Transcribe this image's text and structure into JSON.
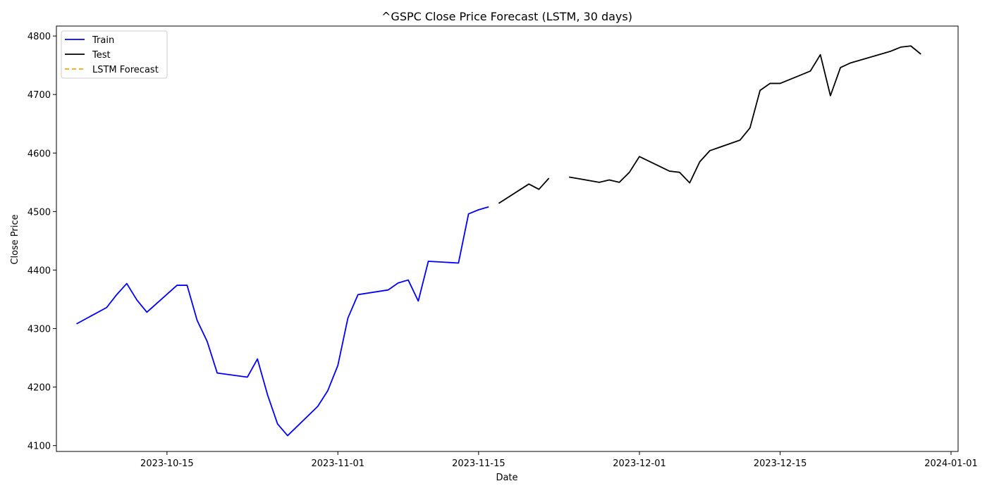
{
  "chart_data": {
    "type": "line",
    "title": "^GSPC Close Price Forecast (LSTM, 30 days)",
    "xlabel": "Date",
    "ylabel": "Close Price",
    "x_ticks": [
      "2023-10-15",
      "2023-11-01",
      "2023-11-15",
      "2023-12-01",
      "2023-12-15",
      "2024-01-01"
    ],
    "y_ticks": [
      4100,
      4200,
      4300,
      4400,
      4500,
      4600,
      4700,
      4800
    ],
    "xlim": [
      "2023-10-04",
      "2024-01-01"
    ],
    "ylim": [
      4090,
      4817
    ],
    "grid": false,
    "legend_position": "top-left",
    "series": [
      {
        "name": "Train",
        "color": "#0000ff",
        "style": "solid",
        "points": [
          [
            "2023-10-06",
            4308
          ],
          [
            "2023-10-09",
            4336
          ],
          [
            "2023-10-10",
            4358
          ],
          [
            "2023-10-11",
            4377
          ],
          [
            "2023-10-12",
            4349
          ],
          [
            "2023-10-13",
            4328
          ],
          [
            "2023-10-16",
            4374
          ],
          [
            "2023-10-17",
            4374
          ],
          [
            "2023-10-18",
            4314
          ],
          [
            "2023-10-19",
            4278
          ],
          [
            "2023-10-20",
            4224
          ],
          [
            "2023-10-23",
            4217
          ],
          [
            "2023-10-24",
            4248
          ],
          [
            "2023-10-25",
            4187
          ],
          [
            "2023-10-26",
            4137
          ],
          [
            "2023-10-27",
            4117
          ],
          [
            "2023-10-30",
            4167
          ],
          [
            "2023-10-31",
            4194
          ],
          [
            "2023-11-01",
            4237
          ],
          [
            "2023-11-02",
            4318
          ],
          [
            "2023-11-03",
            4358
          ],
          [
            "2023-11-06",
            4366
          ],
          [
            "2023-11-07",
            4378
          ],
          [
            "2023-11-08",
            4383
          ],
          [
            "2023-11-09",
            4347
          ],
          [
            "2023-11-10",
            4415
          ],
          [
            "2023-11-13",
            4412
          ],
          [
            "2023-11-14",
            4496
          ],
          [
            "2023-11-15",
            4503
          ],
          [
            "2023-11-16",
            4508
          ]
        ]
      },
      {
        "name": "Test",
        "color": "#000000",
        "style": "solid",
        "segments": [
          [
            [
              "2023-11-17",
              4514
            ],
            [
              "2023-11-20",
              4547
            ],
            [
              "2023-11-21",
              4538
            ],
            [
              "2023-11-22",
              4557
            ]
          ],
          [
            [
              "2023-11-24",
              4559
            ],
            [
              "2023-11-27",
              4550
            ],
            [
              "2023-11-28",
              4554
            ],
            [
              "2023-11-29",
              4550
            ],
            [
              "2023-11-30",
              4567
            ],
            [
              "2023-12-01",
              4594
            ],
            [
              "2023-12-04",
              4569
            ],
            [
              "2023-12-05",
              4567
            ],
            [
              "2023-12-06",
              4549
            ],
            [
              "2023-12-07",
              4585
            ],
            [
              "2023-12-08",
              4604
            ],
            [
              "2023-12-11",
              4622
            ],
            [
              "2023-12-12",
              4643
            ],
            [
              "2023-12-13",
              4707
            ],
            [
              "2023-12-14",
              4719
            ],
            [
              "2023-12-15",
              4719
            ],
            [
              "2023-12-18",
              4740
            ],
            [
              "2023-12-19",
              4768
            ],
            [
              "2023-12-20",
              4698
            ],
            [
              "2023-12-21",
              4746
            ],
            [
              "2023-12-22",
              4754
            ],
            [
              "2023-12-26",
              4774
            ],
            [
              "2023-12-27",
              4781
            ],
            [
              "2023-12-28",
              4783
            ],
            [
              "2023-12-29",
              4769
            ]
          ]
        ]
      },
      {
        "name": "LSTM Forecast",
        "color": "#ffa500",
        "style": "dashed",
        "points": []
      }
    ]
  }
}
